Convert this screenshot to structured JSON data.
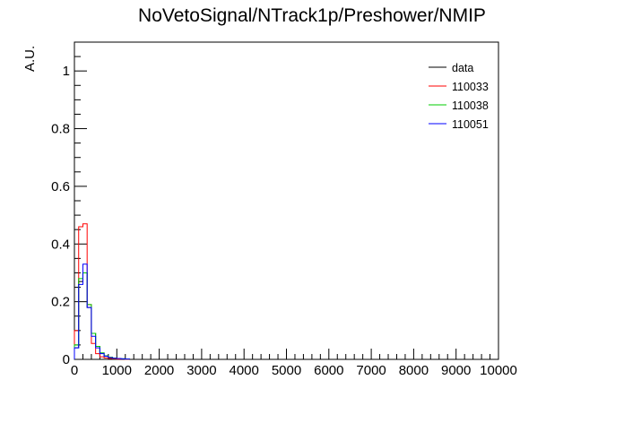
{
  "chart_data": {
    "type": "histogram",
    "title": "NoVetoSignal/NTrack1p/Preshower/NMIP",
    "xlabel": "",
    "ylabel": "A.U.",
    "xlim": [
      0,
      10000
    ],
    "ylim": [
      0,
      1.1
    ],
    "x_ticks": [
      0,
      1000,
      2000,
      3000,
      4000,
      5000,
      6000,
      7000,
      8000,
      9000,
      10000
    ],
    "y_ticks": [
      0,
      0.2,
      0.4,
      0.6,
      0.8,
      1
    ],
    "x_tick_labels": [
      "0",
      "1000",
      "2000",
      "3000",
      "4000",
      "5000",
      "6000",
      "7000",
      "8000",
      "9000",
      "10000"
    ],
    "y_tick_labels": [
      "0",
      "0.2",
      "0.4",
      "0.6",
      "0.8",
      "1"
    ],
    "grid": false,
    "legend_position": "top-right",
    "bin_width": 100,
    "series": [
      {
        "name": "data",
        "color": "#000000",
        "values": [
          0.04,
          0.27,
          0.3,
          0.18,
          0.09,
          0.045,
          0.022,
          0.012,
          0.007,
          0.004,
          0.003,
          0.002,
          0.001
        ]
      },
      {
        "name": "110033",
        "color": "#ff0000",
        "values": [
          0.1,
          0.46,
          0.47,
          0.19,
          0.055,
          0.02,
          0.009,
          0.005,
          0.003,
          0.002,
          0.001,
          0.001,
          0.0
        ]
      },
      {
        "name": "110038",
        "color": "#00cc00",
        "values": [
          0.05,
          0.28,
          0.3,
          0.19,
          0.09,
          0.045,
          0.022,
          0.012,
          0.007,
          0.004,
          0.003,
          0.002,
          0.001
        ]
      },
      {
        "name": "110051",
        "color": "#0000ff",
        "values": [
          0.04,
          0.26,
          0.33,
          0.18,
          0.08,
          0.04,
          0.02,
          0.011,
          0.006,
          0.004,
          0.003,
          0.002,
          0.001
        ]
      }
    ]
  }
}
